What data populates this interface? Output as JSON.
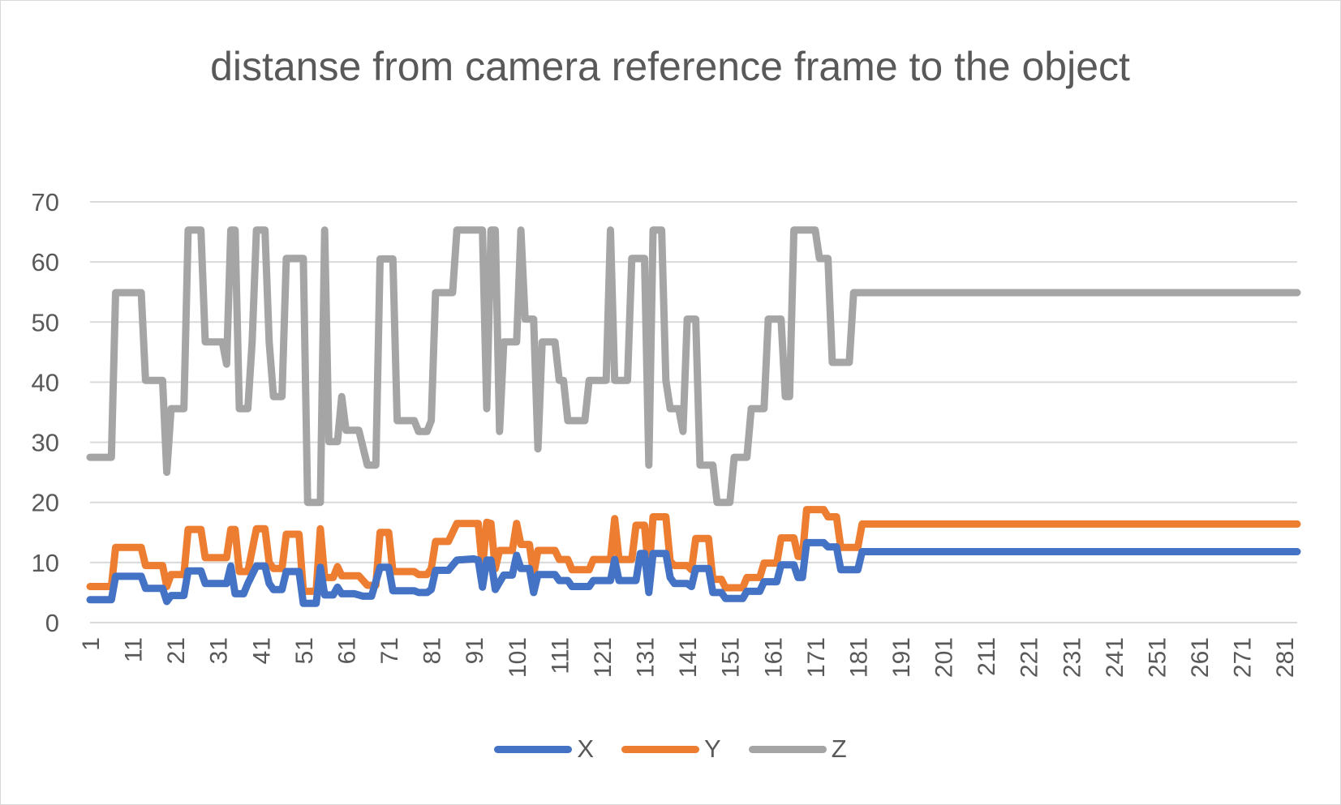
{
  "chart_data": {
    "type": "line",
    "title": "distanse from camera reference frame to the object",
    "xlabel": "",
    "ylabel": "",
    "ylim": [
      0,
      70
    ],
    "yticks": [
      0,
      10,
      20,
      30,
      40,
      50,
      60,
      70
    ],
    "xlim": [
      1,
      284
    ],
    "xtick_labels": [
      "1",
      "11",
      "21",
      "31",
      "41",
      "51",
      "61",
      "71",
      "81",
      "91",
      "101",
      "111",
      "121",
      "131",
      "141",
      "151",
      "161",
      "171",
      "181",
      "191",
      "201",
      "211",
      "221",
      "231",
      "241",
      "251",
      "261",
      "271",
      "281"
    ],
    "grid": true,
    "legend_position": "bottom",
    "series": [
      {
        "name": "X",
        "color": "#4472c4",
        "points": [
          [
            1,
            3.8
          ],
          [
            6,
            3.8
          ],
          [
            7,
            7.7
          ],
          [
            13,
            7.7
          ],
          [
            14,
            5.7
          ],
          [
            18,
            5.7
          ],
          [
            19,
            3.5
          ],
          [
            20,
            4.5
          ],
          [
            23,
            4.5
          ],
          [
            24,
            8.6
          ],
          [
            27,
            8.6
          ],
          [
            28,
            6.5
          ],
          [
            33,
            6.5
          ],
          [
            34,
            9.4
          ],
          [
            35,
            4.8
          ],
          [
            37,
            4.8
          ],
          [
            38,
            6.5
          ],
          [
            40,
            9.4
          ],
          [
            42,
            9.4
          ],
          [
            43,
            6.5
          ],
          [
            44,
            5.5
          ],
          [
            46,
            5.5
          ],
          [
            47,
            8.5
          ],
          [
            50,
            8.5
          ],
          [
            51,
            3.2
          ],
          [
            54,
            3.2
          ],
          [
            55,
            9.2
          ],
          [
            56,
            4.6
          ],
          [
            58,
            4.6
          ],
          [
            59,
            5.9
          ],
          [
            60,
            4.8
          ],
          [
            63,
            4.8
          ],
          [
            65,
            4.4
          ],
          [
            67,
            4.4
          ],
          [
            69,
            9.2
          ],
          [
            71,
            9.2
          ],
          [
            72,
            5.3
          ],
          [
            77,
            5.3
          ],
          [
            78,
            5.0
          ],
          [
            80,
            5.0
          ],
          [
            81,
            5.5
          ],
          [
            82,
            8.7
          ],
          [
            85,
            8.7
          ],
          [
            87,
            10.4
          ],
          [
            91,
            10.6
          ],
          [
            92,
            10.4
          ],
          [
            93,
            5.9
          ],
          [
            94,
            10.4
          ],
          [
            95,
            10.4
          ],
          [
            96,
            5.5
          ],
          [
            98,
            7.9
          ],
          [
            100,
            7.9
          ],
          [
            101,
            11.2
          ],
          [
            102,
            9.0
          ],
          [
            104,
            9.0
          ],
          [
            105,
            5.0
          ],
          [
            106,
            8.0
          ],
          [
            110,
            8.0
          ],
          [
            111,
            7.0
          ],
          [
            113,
            7.0
          ],
          [
            114,
            6.0
          ],
          [
            118,
            6.0
          ],
          [
            119,
            7.0
          ],
          [
            123,
            7.0
          ],
          [
            124,
            10.5
          ],
          [
            125,
            7.0
          ],
          [
            129,
            7.0
          ],
          [
            130,
            11.5
          ],
          [
            131,
            11.5
          ],
          [
            132,
            5.0
          ],
          [
            133,
            11.5
          ],
          [
            136,
            11.5
          ],
          [
            137,
            7.5
          ],
          [
            138,
            6.5
          ],
          [
            141,
            6.5
          ],
          [
            142,
            6.0
          ],
          [
            143,
            9.0
          ],
          [
            146,
            9.0
          ],
          [
            147,
            5.0
          ],
          [
            149,
            5.0
          ],
          [
            150,
            4.0
          ],
          [
            154,
            4.0
          ],
          [
            155,
            5.2
          ],
          [
            158,
            5.2
          ],
          [
            159,
            6.8
          ],
          [
            162,
            6.8
          ],
          [
            163,
            9.6
          ],
          [
            166,
            9.6
          ],
          [
            167,
            7.5
          ],
          [
            168,
            7.5
          ],
          [
            169,
            13.3
          ],
          [
            173,
            13.3
          ],
          [
            174,
            12.6
          ],
          [
            176,
            12.6
          ],
          [
            177,
            8.8
          ],
          [
            181,
            8.8
          ],
          [
            182,
            11.8
          ],
          [
            284,
            11.8
          ]
        ]
      },
      {
        "name": "Y",
        "color": "#ed7d31",
        "points": [
          [
            1,
            6.0
          ],
          [
            6,
            6.0
          ],
          [
            7,
            12.5
          ],
          [
            13,
            12.5
          ],
          [
            14,
            9.5
          ],
          [
            18,
            9.5
          ],
          [
            19,
            6.0
          ],
          [
            20,
            8.0
          ],
          [
            23,
            8.0
          ],
          [
            24,
            15.5
          ],
          [
            27,
            15.5
          ],
          [
            28,
            10.8
          ],
          [
            33,
            10.8
          ],
          [
            34,
            15.5
          ],
          [
            35,
            15.5
          ],
          [
            36,
            8.5
          ],
          [
            38,
            8.5
          ],
          [
            40,
            15.6
          ],
          [
            42,
            15.6
          ],
          [
            43,
            10.0
          ],
          [
            44,
            9.0
          ],
          [
            46,
            9.0
          ],
          [
            47,
            14.7
          ],
          [
            50,
            14.7
          ],
          [
            51,
            5.2
          ],
          [
            54,
            5.2
          ],
          [
            55,
            15.6
          ],
          [
            56,
            7.5
          ],
          [
            58,
            7.5
          ],
          [
            59,
            9.3
          ],
          [
            60,
            7.8
          ],
          [
            64,
            7.8
          ],
          [
            66,
            6.2
          ],
          [
            68,
            6.2
          ],
          [
            69,
            15.0
          ],
          [
            71,
            15.0
          ],
          [
            72,
            8.5
          ],
          [
            77,
            8.5
          ],
          [
            78,
            8.0
          ],
          [
            80,
            8.0
          ],
          [
            81,
            9.0
          ],
          [
            82,
            13.5
          ],
          [
            85,
            13.5
          ],
          [
            87,
            16.5
          ],
          [
            92,
            16.5
          ],
          [
            93,
            9.0
          ],
          [
            94,
            16.7
          ],
          [
            95,
            16.5
          ],
          [
            96,
            9.0
          ],
          [
            97,
            12.0
          ],
          [
            100,
            12.0
          ],
          [
            101,
            16.5
          ],
          [
            102,
            13.0
          ],
          [
            104,
            13.0
          ],
          [
            105,
            8.0
          ],
          [
            106,
            12.0
          ],
          [
            110,
            12.0
          ],
          [
            111,
            10.5
          ],
          [
            113,
            10.5
          ],
          [
            114,
            8.8
          ],
          [
            118,
            8.8
          ],
          [
            119,
            10.5
          ],
          [
            123,
            10.5
          ],
          [
            124,
            17.3
          ],
          [
            125,
            10.5
          ],
          [
            128,
            10.5
          ],
          [
            129,
            16.2
          ],
          [
            131,
            16.2
          ],
          [
            132,
            8.0
          ],
          [
            133,
            17.6
          ],
          [
            136,
            17.6
          ],
          [
            137,
            10.2
          ],
          [
            138,
            9.5
          ],
          [
            141,
            9.5
          ],
          [
            142,
            8.8
          ],
          [
            143,
            14.0
          ],
          [
            146,
            14.0
          ],
          [
            147,
            7.2
          ],
          [
            149,
            7.2
          ],
          [
            150,
            5.8
          ],
          [
            154,
            5.8
          ],
          [
            155,
            7.5
          ],
          [
            158,
            7.5
          ],
          [
            159,
            9.9
          ],
          [
            162,
            9.9
          ],
          [
            163,
            14.1
          ],
          [
            166,
            14.1
          ],
          [
            167,
            11.0
          ],
          [
            168,
            11.0
          ],
          [
            169,
            18.8
          ],
          [
            173,
            18.8
          ],
          [
            174,
            17.6
          ],
          [
            176,
            17.6
          ],
          [
            177,
            12.5
          ],
          [
            181,
            12.5
          ],
          [
            182,
            16.4
          ],
          [
            284,
            16.4
          ]
        ]
      },
      {
        "name": "Z",
        "color": "#a5a5a5",
        "points": [
          [
            1,
            27.5
          ],
          [
            6,
            27.5
          ],
          [
            7,
            54.9
          ],
          [
            13,
            54.9
          ],
          [
            14,
            40.3
          ],
          [
            18,
            40.3
          ],
          [
            19,
            25.0
          ],
          [
            20,
            35.6
          ],
          [
            23,
            35.6
          ],
          [
            24,
            65.3
          ],
          [
            27,
            65.3
          ],
          [
            28,
            46.7
          ],
          [
            32,
            46.7
          ],
          [
            33,
            43.0
          ],
          [
            34,
            65.3
          ],
          [
            35,
            65.3
          ],
          [
            36,
            35.6
          ],
          [
            38,
            35.6
          ],
          [
            39,
            46.7
          ],
          [
            40,
            65.3
          ],
          [
            42,
            65.3
          ],
          [
            43,
            46.7
          ],
          [
            44,
            37.6
          ],
          [
            46,
            37.6
          ],
          [
            47,
            60.6
          ],
          [
            51,
            60.6
          ],
          [
            52,
            20.0
          ],
          [
            55,
            20.0
          ],
          [
            56,
            65.3
          ],
          [
            57,
            30.1
          ],
          [
            59,
            30.1
          ],
          [
            60,
            37.6
          ],
          [
            61,
            32.0
          ],
          [
            64,
            32.0
          ],
          [
            66,
            26.2
          ],
          [
            68,
            26.2
          ],
          [
            69,
            60.5
          ],
          [
            72,
            60.5
          ],
          [
            73,
            33.6
          ],
          [
            77,
            33.6
          ],
          [
            78,
            31.8
          ],
          [
            80,
            31.8
          ],
          [
            81,
            33.6
          ],
          [
            82,
            54.9
          ],
          [
            86,
            54.9
          ],
          [
            87,
            65.3
          ],
          [
            93,
            65.3
          ],
          [
            94,
            35.6
          ],
          [
            95,
            65.3
          ],
          [
            96,
            65.3
          ],
          [
            97,
            31.8
          ],
          [
            98,
            46.7
          ],
          [
            101,
            46.7
          ],
          [
            102,
            65.3
          ],
          [
            103,
            50.5
          ],
          [
            105,
            50.5
          ],
          [
            106,
            28.9
          ],
          [
            107,
            46.7
          ],
          [
            110,
            46.7
          ],
          [
            111,
            40.3
          ],
          [
            112,
            40.3
          ],
          [
            113,
            33.6
          ],
          [
            117,
            33.6
          ],
          [
            118,
            40.3
          ],
          [
            122,
            40.3
          ],
          [
            123,
            65.3
          ],
          [
            124,
            40.3
          ],
          [
            127,
            40.3
          ],
          [
            128,
            60.6
          ],
          [
            131,
            60.6
          ],
          [
            132,
            26.2
          ],
          [
            133,
            65.3
          ],
          [
            135,
            65.3
          ],
          [
            136,
            40.3
          ],
          [
            137,
            35.6
          ],
          [
            139,
            35.6
          ],
          [
            140,
            31.8
          ],
          [
            141,
            50.5
          ],
          [
            143,
            50.5
          ],
          [
            144,
            26.2
          ],
          [
            147,
            26.2
          ],
          [
            148,
            20.0
          ],
          [
            151,
            20.0
          ],
          [
            152,
            27.5
          ],
          [
            155,
            27.5
          ],
          [
            156,
            35.6
          ],
          [
            159,
            35.6
          ],
          [
            160,
            50.5
          ],
          [
            163,
            50.5
          ],
          [
            164,
            37.6
          ],
          [
            165,
            37.6
          ],
          [
            166,
            65.3
          ],
          [
            171,
            65.3
          ],
          [
            172,
            60.6
          ],
          [
            174,
            60.6
          ],
          [
            175,
            43.3
          ],
          [
            179,
            43.3
          ],
          [
            180,
            54.9
          ],
          [
            284,
            54.9
          ]
        ]
      }
    ]
  }
}
